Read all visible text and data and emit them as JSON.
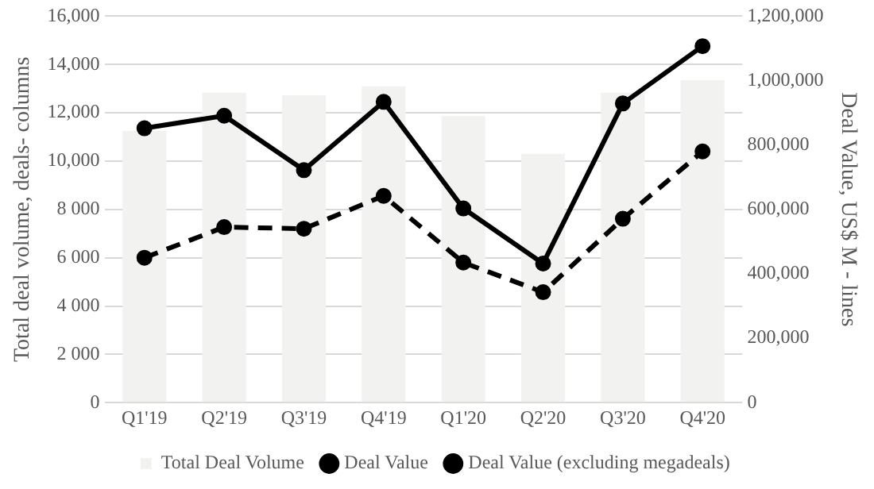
{
  "chart_data": {
    "type": "bar",
    "categories": [
      "Q1'19",
      "Q2'19",
      "Q3'19",
      "Q4'19",
      "Q1'20",
      "Q2'20",
      "Q3'20",
      "Q4'20"
    ],
    "series": [
      {
        "name": "Total Deal Volume",
        "color": "#f2f2f0",
        "values": [
          11250,
          12830,
          12730,
          13100,
          11860,
          10300,
          12830,
          13350
        ]
      },
      {
        "name": "Deal Value",
        "type": "line",
        "axis": "y2",
        "color": "#000000",
        "line_style": "solid",
        "values": [
          852000,
          891000,
          722000,
          934000,
          603000,
          432000,
          929000,
          1107000
        ]
      },
      {
        "name": "Deal Value (excluding megadeals)",
        "type": "line",
        "axis": "y2",
        "color": "#000000",
        "line_style": "dashed",
        "values": [
          450000,
          545000,
          540000,
          642000,
          435000,
          343000,
          571000,
          780000
        ]
      }
    ],
    "ylabel": "Total deal volume, deals- columns",
    "y2label": "Deal Value, US$ M - lines",
    "ylim": [
      0,
      16000
    ],
    "yticks": [
      0,
      {
        "value": 2000,
        "label": "2 000"
      },
      {
        "value": 4000,
        "label": "4 000"
      },
      {
        "value": 6000,
        "label": "6 000"
      },
      {
        "value": 8000,
        "label": "8 000"
      },
      {
        "value": 10000,
        "label": "10,000"
      },
      {
        "value": 12000,
        "label": "12,000"
      },
      {
        "value": 14000,
        "label": "14,000"
      },
      {
        "value": 16000,
        "label": "16,000"
      }
    ],
    "y2lim": [
      0,
      1200000
    ],
    "y2ticks": [
      0,
      {
        "value": 200000,
        "label": "200,000"
      },
      {
        "value": 400000,
        "label": "400,000"
      },
      {
        "value": 600000,
        "label": "600,000"
      },
      {
        "value": 800000,
        "label": "800,000"
      },
      {
        "value": 1000000,
        "label": "1,000,000"
      },
      {
        "value": 1200000,
        "label": "1,200,000"
      }
    ],
    "grid": "y",
    "legend": "bottom",
    "marker": "circle"
  }
}
